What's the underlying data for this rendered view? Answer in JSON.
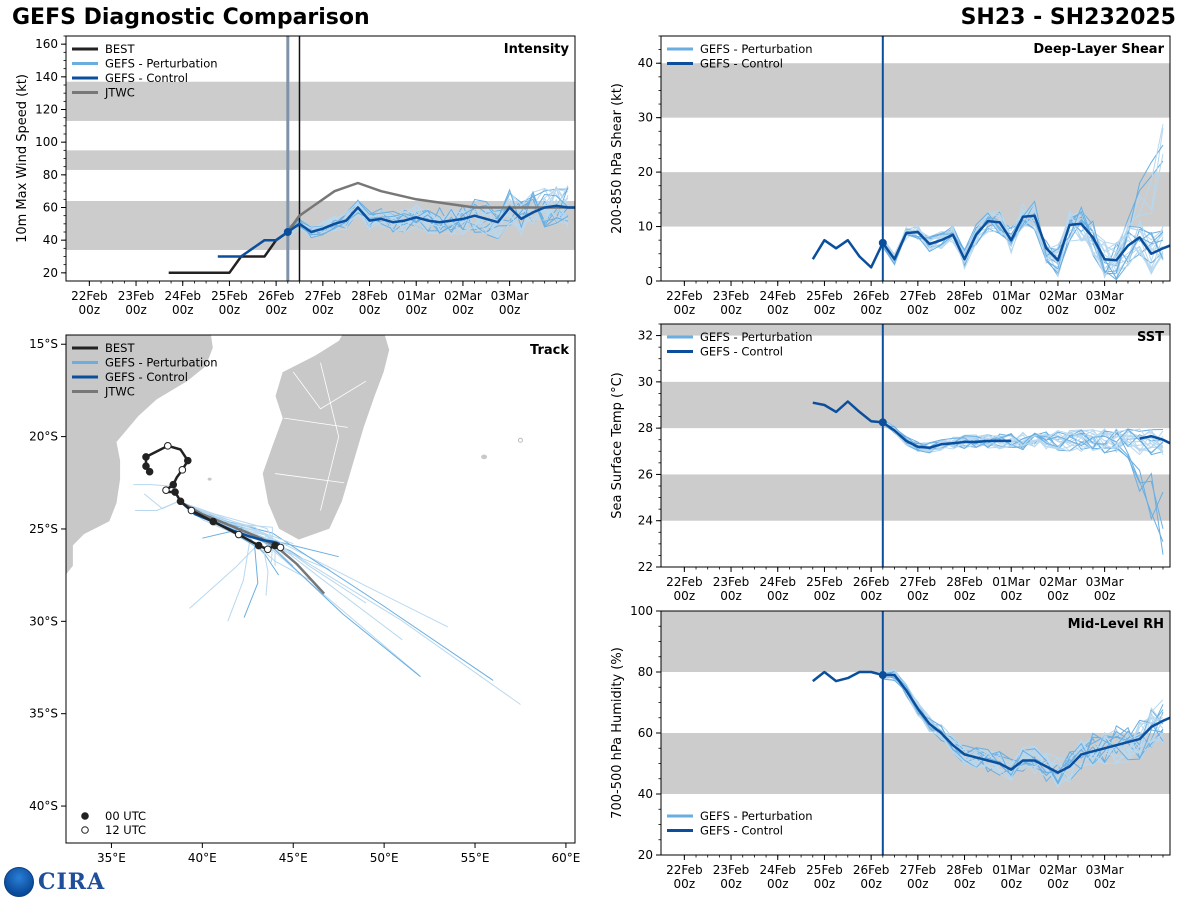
{
  "title": "GEFS Diagnostic Comparison",
  "storm_id": "SH23 - SH232025",
  "logo": {
    "text": "CIRA",
    "icon": "noaa-globe-icon"
  },
  "colors": {
    "best": "#222222",
    "perturbation": "#6aaee0",
    "perturbation_light": "#b8d8ef",
    "control": "#0b4f9c",
    "jtwc": "#777777",
    "band": "#cccccc",
    "land": "#c8c8c8",
    "now_line": "#0b4f9c"
  },
  "time_ticks": [
    {
      "date": "22Feb",
      "hour": "00z"
    },
    {
      "date": "23Feb",
      "hour": "00z"
    },
    {
      "date": "24Feb",
      "hour": "00z"
    },
    {
      "date": "25Feb",
      "hour": "00z"
    },
    {
      "date": "26Feb",
      "hour": "00z"
    },
    {
      "date": "27Feb",
      "hour": "00z"
    },
    {
      "date": "28Feb",
      "hour": "00z"
    },
    {
      "date": "01Mar",
      "hour": "00z"
    },
    {
      "date": "02Mar",
      "hour": "00z"
    },
    {
      "date": "03Mar",
      "hour": "00z"
    }
  ],
  "chart_data": [
    {
      "id": "intensity",
      "type": "line",
      "title": "Intensity",
      "ylabel": "10m Max Wind Speed (kt)",
      "xlim": [
        -0.5,
        10.4
      ],
      "ylim": [
        15,
        165
      ],
      "yticks": [
        20,
        40,
        60,
        80,
        100,
        120,
        140,
        160
      ],
      "bands": [
        [
          34,
          64
        ],
        [
          83,
          95
        ],
        [
          113,
          137
        ]
      ],
      "now_x": 4.25,
      "now_x2": 4.5,
      "legend": [
        "BEST",
        "GEFS - Perturbation",
        "GEFS - Control",
        "JTWC"
      ],
      "series": [
        {
          "name": "BEST",
          "x": [
            1.7,
            2,
            2.5,
            3,
            3.25,
            3.5,
            3.75,
            4,
            4.25,
            4.5
          ],
          "y": [
            20,
            20,
            20,
            20,
            30,
            30,
            30,
            40,
            45,
            55
          ]
        },
        {
          "name": "JTWC",
          "x": [
            4.25,
            4.5,
            4.75,
            5.25,
            5.75,
            6.25,
            7.0,
            7.75,
            8.25,
            9.0,
            9.75,
            10.4
          ],
          "y": [
            45,
            55,
            60,
            70,
            75,
            70,
            65,
            62,
            60,
            60,
            60,
            60
          ]
        },
        {
          "name": "GEFS - Control",
          "x": [
            2.75,
            3,
            3.25,
            3.5,
            3.75,
            4,
            4.25,
            4.5,
            4.75,
            5,
            5.25,
            5.5,
            5.75,
            6,
            6.25,
            6.5,
            6.75,
            7,
            7.25,
            7.5,
            7.75,
            8,
            8.25,
            8.5,
            8.75,
            9,
            9.25,
            9.5,
            9.75,
            10,
            10.25,
            10.4
          ],
          "y": [
            30,
            30,
            30,
            35,
            40,
            40,
            45,
            50,
            45,
            47,
            50,
            52,
            60,
            52,
            53,
            51,
            52,
            54,
            52,
            51,
            52,
            53,
            55,
            53,
            51,
            60,
            53,
            57,
            60,
            61,
            60,
            60
          ]
        }
      ]
    },
    {
      "id": "shear",
      "type": "line",
      "title": "Deep-Layer Shear",
      "ylabel": "200-850 hPa Shear (kt)",
      "xlim": [
        -0.5,
        10.4
      ],
      "ylim": [
        0,
        45
      ],
      "yticks": [
        0,
        10,
        20,
        30,
        40
      ],
      "bands": [
        [
          10,
          20
        ],
        [
          30,
          40
        ]
      ],
      "now_x": 4.25,
      "legend": [
        "GEFS - Perturbation",
        "GEFS - Control"
      ],
      "series": [
        {
          "name": "GEFS - Control",
          "x": [
            2.75,
            3,
            3.25,
            3.5,
            3.75,
            4,
            4.25,
            4.5,
            4.75,
            5,
            5.25,
            5.5,
            5.75,
            6,
            6.25,
            6.5,
            6.75,
            7,
            7.25,
            7.5,
            7.75,
            8,
            8.25,
            8.5,
            8.75,
            9,
            9.25,
            9.5,
            9.75,
            10,
            10.25,
            10.4
          ],
          "y": [
            4,
            7.5,
            6,
            7.5,
            4.5,
            2.5,
            7,
            4,
            8.8,
            9,
            6.8,
            7.5,
            8.5,
            4,
            8.5,
            11,
            10.8,
            7.5,
            11.8,
            12,
            6,
            3.8,
            10.3,
            10.5,
            8,
            4,
            3.8,
            6.5,
            8,
            5,
            6,
            6.5
          ]
        }
      ]
    },
    {
      "id": "sst",
      "type": "line",
      "title": "SST",
      "ylabel": "Sea Surface Temp (°C)",
      "xlim": [
        -0.5,
        10.4
      ],
      "ylim": [
        22,
        32.5
      ],
      "yticks": [
        22,
        24,
        26,
        28,
        30,
        32
      ],
      "bands": [
        [
          24,
          26
        ],
        [
          28,
          30
        ],
        [
          32,
          32.5
        ]
      ],
      "now_x": 4.25,
      "legend": [
        "GEFS - Perturbation",
        "GEFS - Control"
      ],
      "series": [
        {
          "name": "GEFS - Control",
          "x": [
            2.75,
            3,
            3.25,
            3.5,
            3.75,
            4,
            4.25,
            4.5,
            4.75,
            5,
            5.25,
            5.5,
            5.75,
            6,
            6.25,
            6.5,
            6.75,
            7.0
          ],
          "y": [
            29.1,
            29.0,
            28.7,
            29.15,
            28.7,
            28.3,
            28.25,
            27.9,
            27.45,
            27.2,
            27.15,
            27.3,
            27.35,
            27.4,
            27.4,
            27.45,
            27.45,
            27.45
          ]
        },
        {
          "name": "GEFS - Control",
          "x": [
            9.75,
            10,
            10.25,
            10.4
          ],
          "y": [
            27.55,
            27.65,
            27.5,
            27.35
          ]
        }
      ]
    },
    {
      "id": "rh",
      "type": "line",
      "title": "Mid-Level RH",
      "ylabel": "700-500 hPa Humidity (%)",
      "xlim": [
        -0.5,
        10.4
      ],
      "ylim": [
        20,
        100
      ],
      "yticks": [
        20,
        40,
        60,
        80,
        100
      ],
      "bands": [
        [
          40,
          60
        ],
        [
          80,
          100
        ]
      ],
      "now_x": 4.25,
      "legend": [
        "GEFS - Perturbation",
        "GEFS - Control"
      ],
      "series": [
        {
          "name": "GEFS - Control",
          "x": [
            2.75,
            3,
            3.25,
            3.5,
            3.75,
            4,
            4.25,
            4.5,
            4.75,
            5,
            5.25,
            5.5,
            5.75,
            6,
            6.25,
            6.5,
            6.75,
            7,
            7.25,
            7.5,
            7.75,
            8,
            8.25,
            8.5,
            8.75,
            9,
            9.25,
            9.5,
            9.75,
            10,
            10.25,
            10.4
          ],
          "y": [
            77,
            80,
            77,
            78,
            80,
            80,
            79,
            79,
            74,
            68,
            63,
            60,
            56,
            53,
            52,
            51,
            50,
            48,
            51,
            51,
            49,
            47,
            49,
            53,
            54,
            55,
            56,
            57,
            58,
            62,
            64,
            65
          ]
        }
      ]
    },
    {
      "id": "track",
      "type": "line",
      "title": "Track",
      "xlim": [
        32.5,
        60.5
      ],
      "ylim": [
        -42,
        -14.5
      ],
      "xticks": [
        35,
        40,
        45,
        50,
        55,
        60
      ],
      "xtick_labels": [
        "35°E",
        "40°E",
        "45°E",
        "50°E",
        "55°E",
        "60°E"
      ],
      "yticks": [
        -15,
        -20,
        -25,
        -30,
        -35,
        -40
      ],
      "ytick_labels": [
        "15°S",
        "20°S",
        "25°S",
        "30°S",
        "35°S",
        "40°S"
      ],
      "legend": [
        "BEST",
        "GEFS - Perturbation",
        "GEFS - Control",
        "JTWC"
      ],
      "marker_legend": [
        "00 UTC",
        "12 UTC"
      ],
      "best_lon": [
        37.1,
        36.9,
        36.9,
        37.5,
        38.1,
        38.8,
        39.2,
        38.9,
        38.6,
        38.4,
        38.0,
        38.1,
        38.5,
        38.8,
        39.4,
        40.6,
        42.0,
        43.1,
        43.6,
        44.0,
        44.3
      ],
      "best_lat": [
        -21.9,
        -21.6,
        -21.1,
        -20.8,
        -20.5,
        -20.7,
        -21.3,
        -21.8,
        -22.2,
        -22.6,
        -22.9,
        -23.0,
        -23.0,
        -23.5,
        -24.0,
        -24.6,
        -25.3,
        -25.9,
        -26.1,
        -25.9,
        -26.0
      ],
      "best_mark": [
        "0",
        "0",
        "0",
        "n",
        "1",
        "n",
        "0",
        "1",
        "n",
        "0",
        "1",
        "n",
        "0",
        "0",
        "1",
        "0",
        "1",
        "0",
        "1",
        "0",
        "1"
      ],
      "control_lon": [
        38.9,
        39.6,
        40.6,
        41.7,
        42.6,
        43.3,
        43.9,
        44.2,
        44.3
      ],
      "control_lat": [
        -23.6,
        -24.2,
        -24.6,
        -25.1,
        -25.4,
        -25.6,
        -25.7,
        -25.8,
        -26.0
      ],
      "jtwc_lon": [
        38.9,
        40.0,
        41.5,
        43.0,
        44.0,
        45.2,
        46.7
      ],
      "jtwc_lat": [
        -23.6,
        -24.2,
        -24.8,
        -25.4,
        -25.9,
        -26.9,
        -28.5
      ]
    }
  ]
}
